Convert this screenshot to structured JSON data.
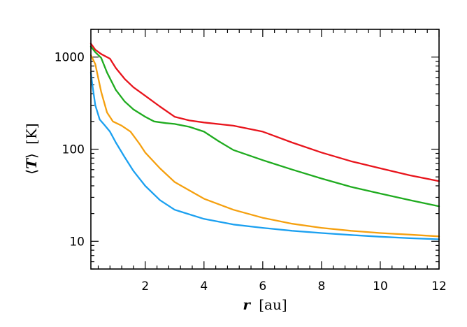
{
  "chart_data": {
    "type": "line",
    "xlabel_italic": "r",
    "xlabel_unit": "[au]",
    "ylabel_bracket_open": "⟨",
    "ylabel_italic": "T",
    "ylabel_bracket_close": "⟩",
    "ylabel_unit": "[K]",
    "xlim": [
      0.15,
      12
    ],
    "ylim": [
      5,
      2000
    ],
    "yscale": "log",
    "grid": false,
    "x_ticks": [
      2,
      4,
      6,
      8,
      10,
      12
    ],
    "x_tick_labels": [
      "2",
      "4",
      "6",
      "8",
      "10",
      "12"
    ],
    "x_minor_step": 0.4,
    "y_ticks": [
      10,
      100,
      1000
    ],
    "y_tick_labels": [
      "10",
      "100",
      "1000"
    ],
    "series": [
      {
        "color": "#e8141c",
        "x": [
          0.15,
          0.3,
          0.5,
          0.8,
          1.0,
          1.3,
          1.6,
          2.0,
          2.5,
          3.0,
          3.5,
          4.0,
          5.0,
          6.0,
          7.0,
          8.0,
          9.0,
          10.0,
          11.0,
          12.0
        ],
        "y": [
          1400,
          1200,
          1080,
          960,
          760,
          580,
          470,
          380,
          290,
          225,
          205,
          195,
          180,
          155,
          118,
          92,
          74,
          62,
          52,
          45
        ]
      },
      {
        "color": "#1fab1f",
        "x": [
          0.15,
          0.3,
          0.5,
          0.7,
          1.0,
          1.3,
          1.6,
          2.0,
          2.3,
          2.7,
          3.0,
          3.5,
          4.0,
          4.5,
          5.0,
          6.0,
          7.0,
          8.0,
          9.0,
          10.0,
          11.0,
          12.0
        ],
        "y": [
          1300,
          1130,
          980,
          680,
          440,
          330,
          270,
          225,
          200,
          192,
          188,
          175,
          155,
          122,
          98,
          76,
          60,
          48,
          39,
          33,
          28,
          24
        ]
      },
      {
        "color": "#f5a00f",
        "x": [
          0.15,
          0.3,
          0.5,
          0.7,
          0.9,
          1.2,
          1.5,
          1.8,
          2.0,
          2.5,
          3.0,
          4.0,
          5.0,
          6.0,
          7.0,
          8.0,
          9.0,
          10.0,
          11.0,
          12.0
        ],
        "y": [
          1050,
          840,
          420,
          250,
          200,
          180,
          155,
          115,
          92,
          62,
          44,
          29,
          22,
          18,
          15.5,
          14,
          13,
          12.3,
          11.8,
          11.3
        ]
      },
      {
        "color": "#1ba0f0",
        "x": [
          0.15,
          0.2,
          0.3,
          0.45,
          0.6,
          0.8,
          1.0,
          1.3,
          1.6,
          2.0,
          2.5,
          3.0,
          4.0,
          5.0,
          6.0,
          7.0,
          8.0,
          9.0,
          10.0,
          11.0,
          12.0
        ],
        "y": [
          680,
          500,
          300,
          210,
          185,
          155,
          118,
          82,
          58,
          40,
          28,
          22,
          17.5,
          15.2,
          14,
          13,
          12.3,
          11.7,
          11.2,
          10.8,
          10.5
        ]
      }
    ]
  }
}
